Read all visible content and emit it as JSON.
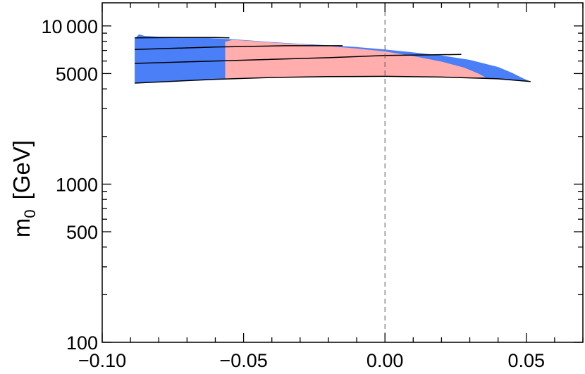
{
  "chart_data": {
    "type": "area",
    "ylabel": "m",
    "ylabel_subscript": "0",
    "ylabel_unit": "[GeV]",
    "xlim": [
      -0.1,
      0.07
    ],
    "ylim": [
      100,
      14000
    ],
    "y_scale": "log",
    "x_ticks": [
      {
        "value": -0.1,
        "label": "−0.10"
      },
      {
        "value": -0.05,
        "label": "−0.05"
      },
      {
        "value": 0.0,
        "label": "0.00"
      },
      {
        "value": 0.05,
        "label": "0.05"
      }
    ],
    "y_ticks": [
      {
        "value": 100,
        "label": "100"
      },
      {
        "value": 500,
        "label": "500"
      },
      {
        "value": 1000,
        "label": "1000"
      },
      {
        "value": 5000,
        "label": "5000"
      },
      {
        "value": 10000,
        "label": "10 000"
      }
    ],
    "reference_line": {
      "x": 0.0,
      "style": "dashed"
    },
    "colors": {
      "blue_region": "#4a7ff7",
      "pink_region": "#ffadad",
      "lines": "#000000",
      "reference": "#555555"
    },
    "regions": [
      {
        "color_key": "blue_region",
        "points": [
          [
            -0.0885,
            8300
          ],
          [
            -0.087,
            8850
          ],
          [
            -0.085,
            8650
          ],
          [
            -0.08,
            8550
          ],
          [
            -0.07,
            8500
          ],
          [
            -0.06,
            8350
          ],
          [
            -0.05,
            8150
          ],
          [
            -0.04,
            7900
          ],
          [
            -0.03,
            7700
          ],
          [
            -0.02,
            7550
          ],
          [
            -0.01,
            7350
          ],
          [
            0.0,
            7100
          ],
          [
            0.01,
            6800
          ],
          [
            0.02,
            6500
          ],
          [
            0.03,
            6100
          ],
          [
            0.04,
            5500
          ],
          [
            0.045,
            5050
          ],
          [
            0.049,
            4650
          ],
          [
            0.0515,
            4450
          ],
          [
            0.045,
            4560
          ],
          [
            0.04,
            4630
          ],
          [
            0.03,
            4700
          ],
          [
            0.02,
            4750
          ],
          [
            0.0,
            4800
          ],
          [
            -0.02,
            4780
          ],
          [
            -0.04,
            4720
          ],
          [
            -0.06,
            4600
          ],
          [
            -0.08,
            4450
          ],
          [
            -0.0885,
            4350
          ]
        ]
      },
      {
        "color_key": "pink_region",
        "points": [
          [
            -0.0565,
            4600
          ],
          [
            -0.0565,
            7950
          ],
          [
            -0.054,
            8150
          ],
          [
            -0.05,
            8100
          ],
          [
            -0.04,
            7850
          ],
          [
            -0.03,
            7650
          ],
          [
            -0.02,
            7450
          ],
          [
            -0.01,
            7200
          ],
          [
            0.0,
            6900
          ],
          [
            0.01,
            6450
          ],
          [
            0.02,
            5950
          ],
          [
            0.028,
            5450
          ],
          [
            0.033,
            5000
          ],
          [
            0.0355,
            4740
          ],
          [
            0.03,
            4700
          ],
          [
            0.02,
            4750
          ],
          [
            0.0,
            4800
          ],
          [
            -0.02,
            4780
          ],
          [
            -0.04,
            4720
          ]
        ]
      }
    ],
    "lines": [
      {
        "points": [
          [
            -0.0885,
            8400
          ],
          [
            -0.075,
            8450
          ],
          [
            -0.06,
            8450
          ],
          [
            -0.055,
            8400
          ]
        ]
      },
      {
        "points": [
          [
            -0.0885,
            7100
          ],
          [
            -0.06,
            7350
          ],
          [
            -0.035,
            7500
          ],
          [
            -0.015,
            7500
          ]
        ]
      },
      {
        "points": [
          [
            -0.0885,
            5800
          ],
          [
            -0.06,
            6000
          ],
          [
            -0.02,
            6300
          ],
          [
            0.0,
            6500
          ],
          [
            0.027,
            6600
          ]
        ]
      },
      {
        "points": [
          [
            -0.0885,
            4350
          ],
          [
            -0.06,
            4600
          ],
          [
            -0.04,
            4720
          ],
          [
            -0.02,
            4780
          ],
          [
            0.0,
            4800
          ],
          [
            0.02,
            4750
          ],
          [
            0.04,
            4630
          ],
          [
            0.0515,
            4450
          ]
        ]
      }
    ]
  }
}
